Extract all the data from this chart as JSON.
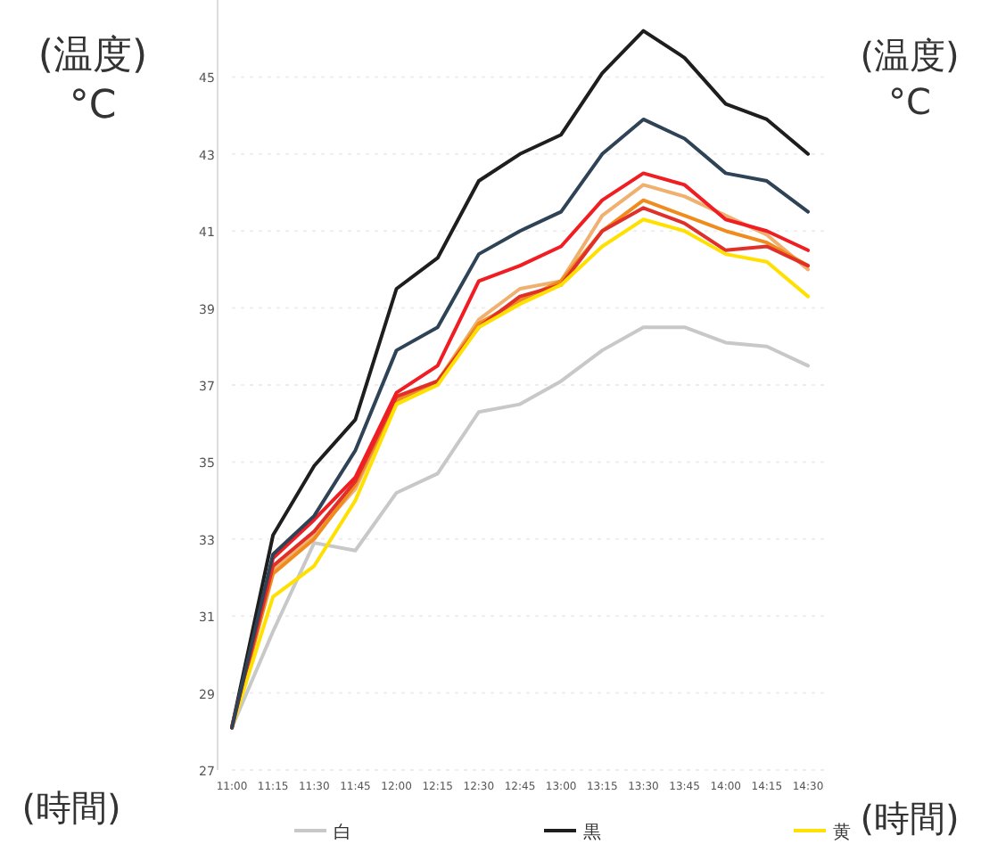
{
  "chart_data": {
    "type": "line",
    "xlabel": "(時間)",
    "ylabel": "(温度)\n°C",
    "annotations": [
      "(温度)\n°C",
      "(時間)"
    ],
    "categories": [
      "11:00",
      "11:15",
      "11:30",
      "11:45",
      "12:00",
      "12:15",
      "12:30",
      "12:45",
      "13:00",
      "13:15",
      "13:30",
      "13:45",
      "14:00",
      "14:15",
      "14:30"
    ],
    "series": [
      {
        "name": "白",
        "color": "#c8c8c8",
        "values": [
          28.1,
          30.6,
          32.9,
          32.7,
          34.2,
          34.7,
          36.3,
          36.5,
          37.1,
          37.9,
          38.5,
          38.5,
          38.1,
          38.0,
          37.5
        ]
      },
      {
        "name": "黒",
        "color": "#1e1e1e",
        "values": [
          28.1,
          33.1,
          34.9,
          36.1,
          39.5,
          40.3,
          42.3,
          43.0,
          43.5,
          45.1,
          46.2,
          45.5,
          44.3,
          43.9,
          43.0
        ]
      },
      {
        "color": "#f0b070",
        "values": [
          28.1,
          32.2,
          33.1,
          34.3,
          36.6,
          37.1,
          38.7,
          39.5,
          39.7,
          41.4,
          42.2,
          41.9,
          41.4,
          40.9,
          40.0
        ]
      },
      {
        "color": "#f08c1e",
        "values": [
          28.1,
          32.1,
          33.0,
          34.4,
          36.6,
          37.1,
          38.6,
          39.2,
          39.7,
          41.0,
          41.8,
          41.4,
          41.0,
          40.7,
          40.1
        ]
      },
      {
        "color": "#e0302a",
        "values": [
          28.1,
          32.3,
          33.2,
          34.5,
          36.7,
          37.1,
          38.5,
          39.3,
          39.6,
          41.0,
          41.6,
          41.2,
          40.5,
          40.6,
          40.1
        ]
      },
      {
        "name": "黄",
        "color": "#ffe000",
        "values": [
          28.1,
          31.5,
          32.3,
          34.0,
          36.5,
          37.0,
          38.5,
          39.1,
          39.6,
          40.6,
          41.3,
          41.0,
          40.4,
          40.2,
          39.3
        ]
      },
      {
        "color": "#f01e23",
        "values": [
          28.1,
          32.5,
          33.5,
          34.6,
          36.8,
          37.5,
          39.7,
          40.1,
          40.6,
          41.8,
          42.5,
          42.2,
          41.3,
          41.0,
          40.5
        ]
      },
      {
        "color": "#2e4356",
        "values": [
          28.1,
          32.6,
          33.6,
          35.3,
          37.9,
          38.5,
          40.4,
          41.0,
          41.5,
          43.0,
          43.9,
          43.4,
          42.5,
          42.3,
          41.5
        ]
      }
    ],
    "ylim": [
      27,
      47
    ],
    "yticks": [
      27,
      29,
      31,
      33,
      35,
      37,
      39,
      41,
      43,
      45
    ],
    "grid": "y",
    "legend": "bottom",
    "marker": "none",
    "line_style": "solid"
  }
}
